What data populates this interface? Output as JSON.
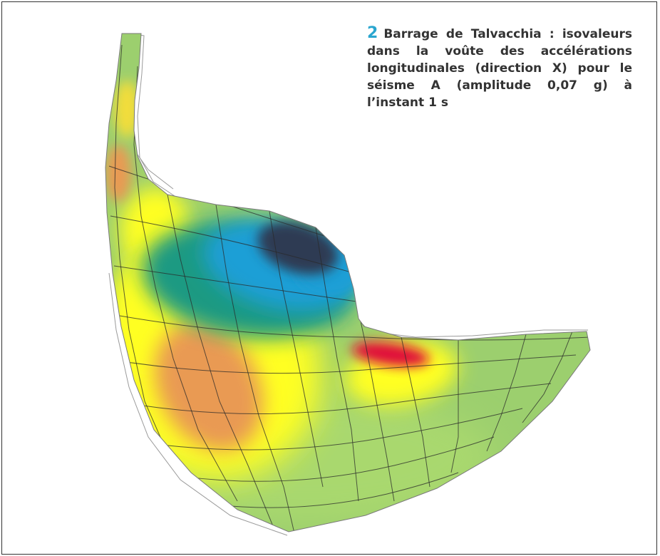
{
  "figure": {
    "number": "2",
    "caption": "Barrage de Talvacchia : isovaleurs dans la voûte des accélérations longitudinales (direction X) pour le séisme A (amplitude 0,07 g) à l’instant 1 s"
  },
  "colors": {
    "green": "#9ccf6e",
    "yellow": "#ffff22",
    "orange": "#e99a52",
    "teal": "#1f9a82",
    "blue": "#1c9fd6",
    "dark_navy": "#2f3a52",
    "red": "#e0103a",
    "mesh": "#2a2a2a"
  }
}
